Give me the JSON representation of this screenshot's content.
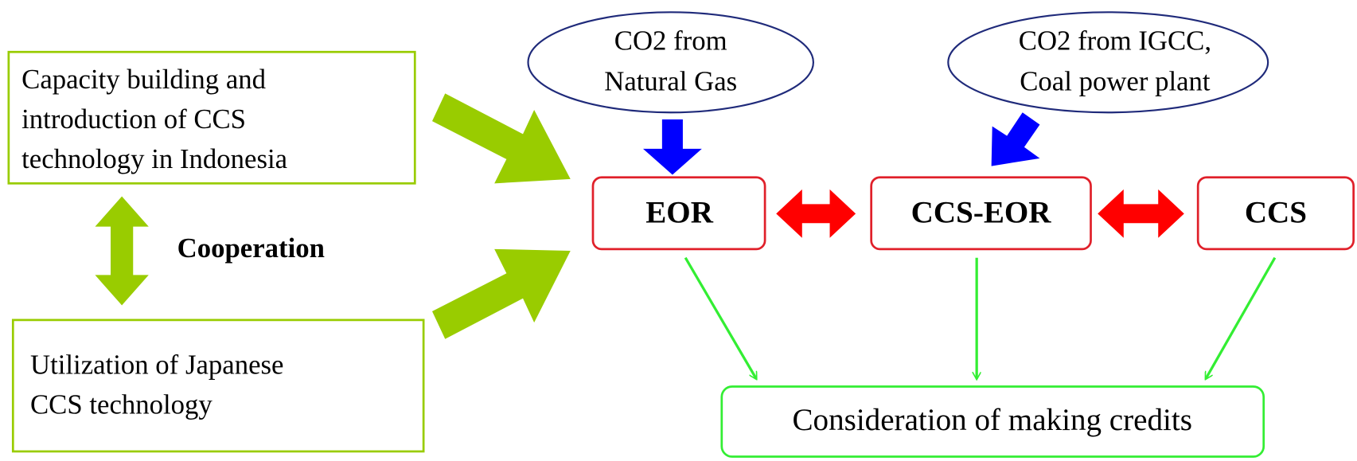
{
  "left_boxes": [
    {
      "lines": [
        "Capacity building and",
        "introduction of CCS",
        "technology in Indonesia"
      ]
    },
    {
      "lines": [
        "Utilization of Japanese",
        "CCS technology"
      ]
    }
  ],
  "cooperation": "Cooperation",
  "sources": [
    {
      "lines": [
        "CO2 from",
        "Natural Gas"
      ]
    },
    {
      "lines": [
        "CO2 from IGCC,",
        "Coal power plant"
      ]
    }
  ],
  "processes": [
    "EOR",
    "CCS-EOR",
    "CCS"
  ],
  "outcome": "Consideration of making credits"
}
